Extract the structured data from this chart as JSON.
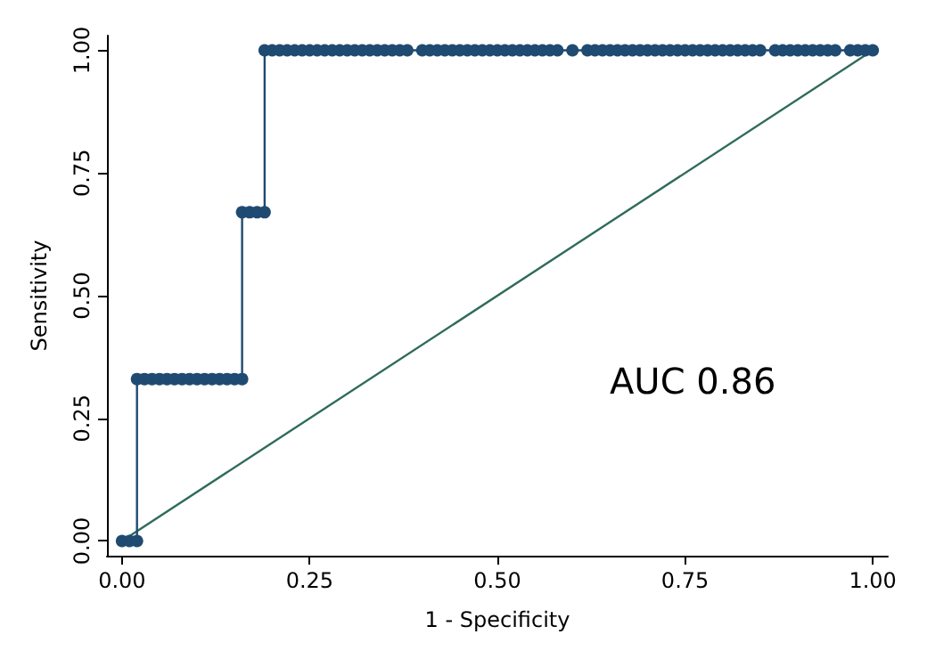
{
  "chart_data": {
    "type": "line",
    "xlabel": "1 - Specificity",
    "ylabel": "Sensitivity",
    "annotations": [
      "AUC 0.86"
    ],
    "xlim": [
      -0.02,
      1.02
    ],
    "ylim": [
      -0.03,
      1.03
    ],
    "xticks": [
      {
        "value": 0,
        "label": "0.00"
      },
      {
        "value": 0.25,
        "label": "0.25"
      },
      {
        "value": 0.5,
        "label": "0.50"
      },
      {
        "value": 0.75,
        "label": "0.75"
      },
      {
        "value": 1,
        "label": "1.00"
      }
    ],
    "yticks": [
      {
        "value": 0,
        "label": "0.00"
      },
      {
        "value": 0.25,
        "label": "0.25"
      },
      {
        "value": 0.5,
        "label": "0.50"
      },
      {
        "value": 0.75,
        "label": "0.75"
      },
      {
        "value": 1,
        "label": "1.00"
      }
    ],
    "grid": false,
    "series": [
      {
        "color": "#1f4a72",
        "marker": "circle",
        "x": [
          0,
          0.01,
          0.02,
          0.02,
          0.03,
          0.04,
          0.05,
          0.06,
          0.07,
          0.08,
          0.09,
          0.1,
          0.11,
          0.12,
          0.13,
          0.14,
          0.15,
          0.16,
          0.16,
          0.17,
          0.18,
          0.19,
          0.19,
          0.2,
          0.21,
          0.22,
          0.23,
          0.24,
          0.25,
          0.26,
          0.27,
          0.28,
          0.29,
          0.3,
          0.31,
          0.32,
          0.33,
          0.34,
          0.35,
          0.36,
          0.37,
          0.38,
          0.4,
          0.41,
          0.42,
          0.43,
          0.44,
          0.45,
          0.46,
          0.47,
          0.48,
          0.49,
          0.5,
          0.51,
          0.52,
          0.53,
          0.54,
          0.55,
          0.56,
          0.57,
          0.58,
          0.6,
          0.62,
          0.63,
          0.64,
          0.65,
          0.66,
          0.67,
          0.68,
          0.69,
          0.7,
          0.71,
          0.72,
          0.73,
          0.74,
          0.75,
          0.76,
          0.77,
          0.78,
          0.79,
          0.8,
          0.81,
          0.82,
          0.83,
          0.84,
          0.85,
          0.87,
          0.88,
          0.89,
          0.9,
          0.91,
          0.92,
          0.93,
          0.94,
          0.95,
          0.97,
          0.98,
          0.99,
          1
        ],
        "values": [
          0,
          0,
          0,
          0.33,
          0.33,
          0.33,
          0.33,
          0.33,
          0.33,
          0.33,
          0.33,
          0.33,
          0.33,
          0.33,
          0.33,
          0.33,
          0.33,
          0.33,
          0.67,
          0.67,
          0.67,
          0.67,
          1,
          1,
          1,
          1,
          1,
          1,
          1,
          1,
          1,
          1,
          1,
          1,
          1,
          1,
          1,
          1,
          1,
          1,
          1,
          1,
          1,
          1,
          1,
          1,
          1,
          1,
          1,
          1,
          1,
          1,
          1,
          1,
          1,
          1,
          1,
          1,
          1,
          1,
          1,
          1,
          1,
          1,
          1,
          1,
          1,
          1,
          1,
          1,
          1,
          1,
          1,
          1,
          1,
          1,
          1,
          1,
          1,
          1,
          1,
          1,
          1,
          1,
          1,
          1,
          1,
          1,
          1,
          1,
          1,
          1,
          1,
          1,
          1,
          1,
          1,
          1,
          1
        ]
      },
      {
        "color": "#2f6b5c",
        "marker": "none",
        "x": [
          0,
          1
        ],
        "values": [
          0,
          1
        ]
      }
    ]
  }
}
